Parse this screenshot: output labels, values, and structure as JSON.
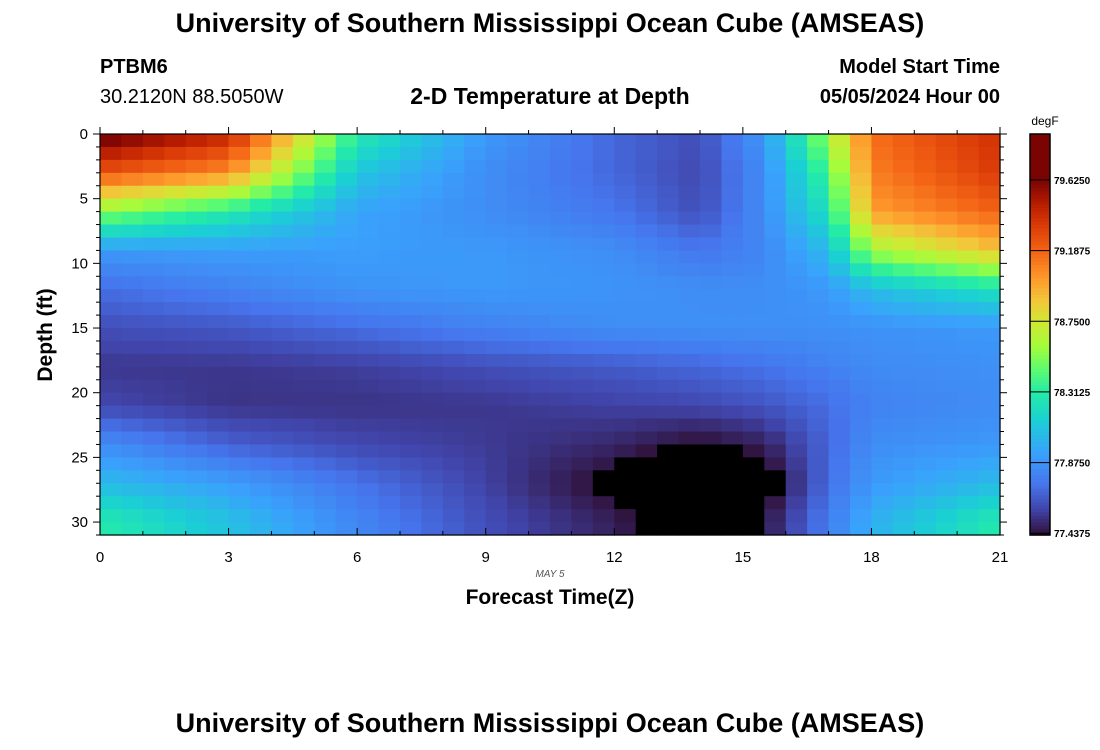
{
  "header": {
    "title": "University of Southern Mississippi Ocean Cube (AMSEAS)",
    "station_id": "PTBM6",
    "station_coords": "30.2120N  88.5050W",
    "subtitle": "2-D Temperature at Depth",
    "start_label": "Model Start Time",
    "start_value": "05/05/2024 Hour 00"
  },
  "footer": {
    "title": "University of Southern Mississippi Ocean Cube (AMSEAS)"
  },
  "chart_data": {
    "type": "heatmap",
    "title": "2-D Temperature at Depth",
    "xlabel": "Forecast Time(Z)",
    "ylabel": "Depth (ft)",
    "x_date_label": "MAY 5",
    "xlim": [
      0,
      21
    ],
    "ylim": [
      31,
      0
    ],
    "x_ticks": [
      0,
      3,
      6,
      9,
      12,
      15,
      18,
      21
    ],
    "y_ticks": [
      0,
      5,
      10,
      15,
      20,
      25,
      30
    ],
    "x_step": 0.5,
    "y_step": 1,
    "colorbar": {
      "unit": "degF",
      "min": 77.4375,
      "max": 79.625,
      "ticks": [
        77.4375,
        77.875,
        78.3125,
        78.75,
        79.1875,
        79.625
      ],
      "tick_labels": [
        "77.4375",
        "77.8750",
        "78.3125",
        "78.7500",
        "79.1875",
        "79.6250"
      ]
    },
    "temperature_keyframes_degF": {
      "times_h": [
        0,
        3,
        6,
        9,
        12,
        14,
        15.5,
        17,
        18,
        21
      ],
      "depths_ft": [
        0,
        3,
        6,
        9,
        12,
        15,
        18,
        21,
        24,
        27,
        30
      ],
      "values": [
        [
          79.7,
          79.45,
          78.3,
          77.9,
          77.7,
          77.62,
          77.9,
          78.6,
          79.15,
          79.4
        ],
        [
          79.25,
          79.05,
          78.1,
          77.85,
          77.7,
          77.6,
          77.85,
          78.4,
          79.1,
          79.35
        ],
        [
          78.55,
          78.3,
          77.95,
          77.85,
          77.75,
          77.62,
          77.85,
          78.25,
          79.0,
          79.2
        ],
        [
          77.9,
          77.92,
          77.92,
          77.9,
          77.85,
          77.75,
          77.82,
          78.05,
          78.6,
          78.9
        ],
        [
          77.72,
          77.8,
          77.88,
          77.9,
          77.88,
          77.85,
          77.85,
          77.9,
          78.05,
          78.25
        ],
        [
          77.62,
          77.65,
          77.72,
          77.8,
          77.85,
          77.86,
          77.86,
          77.86,
          77.87,
          77.9
        ],
        [
          77.55,
          77.55,
          77.57,
          77.62,
          77.66,
          77.7,
          77.74,
          77.8,
          77.84,
          77.86
        ],
        [
          77.6,
          77.54,
          77.54,
          77.55,
          77.58,
          77.6,
          77.64,
          77.72,
          77.8,
          77.85
        ],
        [
          77.85,
          77.68,
          77.6,
          77.56,
          77.5,
          77.42,
          77.48,
          77.7,
          77.85,
          77.9
        ],
        [
          78.05,
          77.92,
          77.74,
          77.58,
          77.4,
          77.18,
          77.35,
          77.72,
          77.9,
          78.05
        ],
        [
          78.3,
          78.08,
          77.82,
          77.62,
          77.48,
          77.32,
          77.45,
          77.78,
          78.0,
          78.3
        ]
      ]
    }
  }
}
